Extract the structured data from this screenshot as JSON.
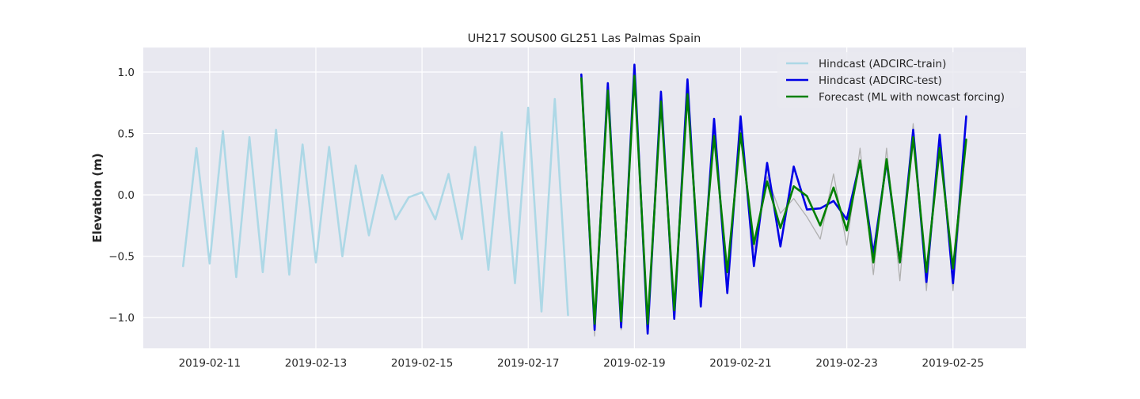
{
  "chart_data": {
    "type": "line",
    "title": "UH217 SOUS00 GL251 Las Palmas Spain",
    "xlabel": "",
    "ylabel": "Elevation (m)",
    "xlim": [
      "2019-02-09T18:00",
      "2019-02-26T09:00"
    ],
    "ylim": [
      -1.25,
      1.2
    ],
    "grid": true,
    "background": "#e8e8f0",
    "legend_position": "top-right",
    "x_ticks": [
      "2019-02-11",
      "2019-02-13",
      "2019-02-15",
      "2019-02-17",
      "2019-02-19",
      "2019-02-21",
      "2019-02-23",
      "2019-02-25"
    ],
    "y_ticks": [
      1.0,
      0.5,
      0.0,
      -0.5,
      -1.0
    ],
    "y_tick_labels": [
      "1.0",
      "0.5",
      "0.0",
      "−0.5",
      "−1.0"
    ],
    "series": [
      {
        "name": "",
        "color": "#b0b0b0",
        "width": 1.3,
        "in_legend": false,
        "x": [
          "2019-02-18T00:00",
          "2019-02-18T06:00",
          "2019-02-18T12:00",
          "2019-02-18T18:00",
          "2019-02-19T00:00",
          "2019-02-19T06:00",
          "2019-02-19T12:00",
          "2019-02-19T18:00",
          "2019-02-20T00:00",
          "2019-02-20T06:00",
          "2019-02-20T12:00",
          "2019-02-20T18:00",
          "2019-02-21T00:00",
          "2019-02-21T06:00",
          "2019-02-21T12:00",
          "2019-02-21T18:00",
          "2019-02-22T00:00",
          "2019-02-22T06:00",
          "2019-02-22T12:00",
          "2019-02-22T18:00",
          "2019-02-23T00:00",
          "2019-02-23T06:00",
          "2019-02-23T12:00",
          "2019-02-23T18:00",
          "2019-02-24T00:00",
          "2019-02-24T06:00",
          "2019-02-24T12:00",
          "2019-02-24T18:00",
          "2019-02-25T00:00",
          "2019-02-25T06:00"
        ],
        "y": [
          0.97,
          -1.15,
          0.9,
          -1.1,
          1.05,
          -1.12,
          0.82,
          -1.0,
          0.9,
          -0.88,
          0.55,
          -0.72,
          0.55,
          -0.45,
          0.15,
          -0.15,
          -0.03,
          -0.18,
          -0.36,
          0.17,
          -0.41,
          0.38,
          -0.65,
          0.38,
          -0.7,
          0.58,
          -0.78,
          0.48,
          -0.78,
          0.45
        ]
      },
      {
        "name": "Hindcast (ADCIRC-train)",
        "color": "#add8e6",
        "width": 2.6,
        "in_legend": true,
        "x": [
          "2019-02-10T12:00",
          "2019-02-10T18:00",
          "2019-02-11T00:00",
          "2019-02-11T06:00",
          "2019-02-11T12:00",
          "2019-02-11T18:00",
          "2019-02-12T00:00",
          "2019-02-12T06:00",
          "2019-02-12T12:00",
          "2019-02-12T18:00",
          "2019-02-13T00:00",
          "2019-02-13T06:00",
          "2019-02-13T12:00",
          "2019-02-13T18:00",
          "2019-02-14T00:00",
          "2019-02-14T06:00",
          "2019-02-14T12:00",
          "2019-02-14T18:00",
          "2019-02-15T00:00",
          "2019-02-15T06:00",
          "2019-02-15T12:00",
          "2019-02-15T18:00",
          "2019-02-16T00:00",
          "2019-02-16T06:00",
          "2019-02-16T12:00",
          "2019-02-16T18:00",
          "2019-02-17T00:00",
          "2019-02-17T06:00",
          "2019-02-17T12:00",
          "2019-02-17T18:00"
        ],
        "y": [
          -0.58,
          0.38,
          -0.56,
          0.52,
          -0.67,
          0.47,
          -0.63,
          0.53,
          -0.65,
          0.41,
          -0.55,
          0.39,
          -0.5,
          0.24,
          -0.33,
          0.16,
          -0.2,
          -0.02,
          0.02,
          -0.2,
          0.17,
          -0.36,
          0.39,
          -0.61,
          0.51,
          -0.72,
          0.71,
          -0.95,
          0.78,
          -0.98
        ]
      },
      {
        "name": "Hindcast (ADCIRC-test)",
        "color": "#0000e6",
        "width": 2.6,
        "in_legend": true,
        "x": [
          "2019-02-18T00:00",
          "2019-02-18T06:00",
          "2019-02-18T12:00",
          "2019-02-18T18:00",
          "2019-02-19T00:00",
          "2019-02-19T06:00",
          "2019-02-19T12:00",
          "2019-02-19T18:00",
          "2019-02-20T00:00",
          "2019-02-20T06:00",
          "2019-02-20T12:00",
          "2019-02-20T18:00",
          "2019-02-21T00:00",
          "2019-02-21T06:00",
          "2019-02-21T12:00",
          "2019-02-21T18:00",
          "2019-02-22T00:00",
          "2019-02-22T06:00",
          "2019-02-22T12:00",
          "2019-02-22T18:00",
          "2019-02-23T00:00",
          "2019-02-23T06:00",
          "2019-02-23T12:00",
          "2019-02-23T18:00",
          "2019-02-24T00:00",
          "2019-02-24T06:00",
          "2019-02-24T12:00",
          "2019-02-24T18:00",
          "2019-02-25T00:00",
          "2019-02-25T06:00"
        ],
        "y": [
          0.98,
          -1.1,
          0.91,
          -1.08,
          1.06,
          -1.13,
          0.84,
          -1.01,
          0.94,
          -0.91,
          0.62,
          -0.8,
          0.64,
          -0.58,
          0.26,
          -0.42,
          0.23,
          -0.12,
          -0.11,
          -0.05,
          -0.2,
          0.27,
          -0.48,
          0.27,
          -0.55,
          0.53,
          -0.71,
          0.49,
          -0.72,
          0.64
        ]
      },
      {
        "name": "Forecast (ML with nowcast forcing)",
        "color": "#008000",
        "width": 2.6,
        "in_legend": true,
        "x": [
          "2019-02-18T00:00",
          "2019-02-18T06:00",
          "2019-02-18T12:00",
          "2019-02-18T18:00",
          "2019-02-19T00:00",
          "2019-02-19T06:00",
          "2019-02-19T12:00",
          "2019-02-19T18:00",
          "2019-02-20T00:00",
          "2019-02-20T06:00",
          "2019-02-20T12:00",
          "2019-02-20T18:00",
          "2019-02-21T00:00",
          "2019-02-21T06:00",
          "2019-02-21T12:00",
          "2019-02-21T18:00",
          "2019-02-22T00:00",
          "2019-02-22T06:00",
          "2019-02-22T12:00",
          "2019-02-22T18:00",
          "2019-02-23T00:00",
          "2019-02-23T06:00",
          "2019-02-23T12:00",
          "2019-02-23T18:00",
          "2019-02-24T00:00",
          "2019-02-24T06:00",
          "2019-02-24T12:00",
          "2019-02-24T18:00",
          "2019-02-25T00:00",
          "2019-02-25T06:00"
        ],
        "y": [
          0.95,
          -1.05,
          0.85,
          -1.03,
          0.97,
          -1.05,
          0.76,
          -0.94,
          0.82,
          -0.78,
          0.48,
          -0.63,
          0.5,
          -0.4,
          0.11,
          -0.27,
          0.07,
          -0.01,
          -0.25,
          0.06,
          -0.29,
          0.28,
          -0.55,
          0.29,
          -0.55,
          0.47,
          -0.63,
          0.38,
          -0.6,
          0.45
        ]
      }
    ]
  }
}
